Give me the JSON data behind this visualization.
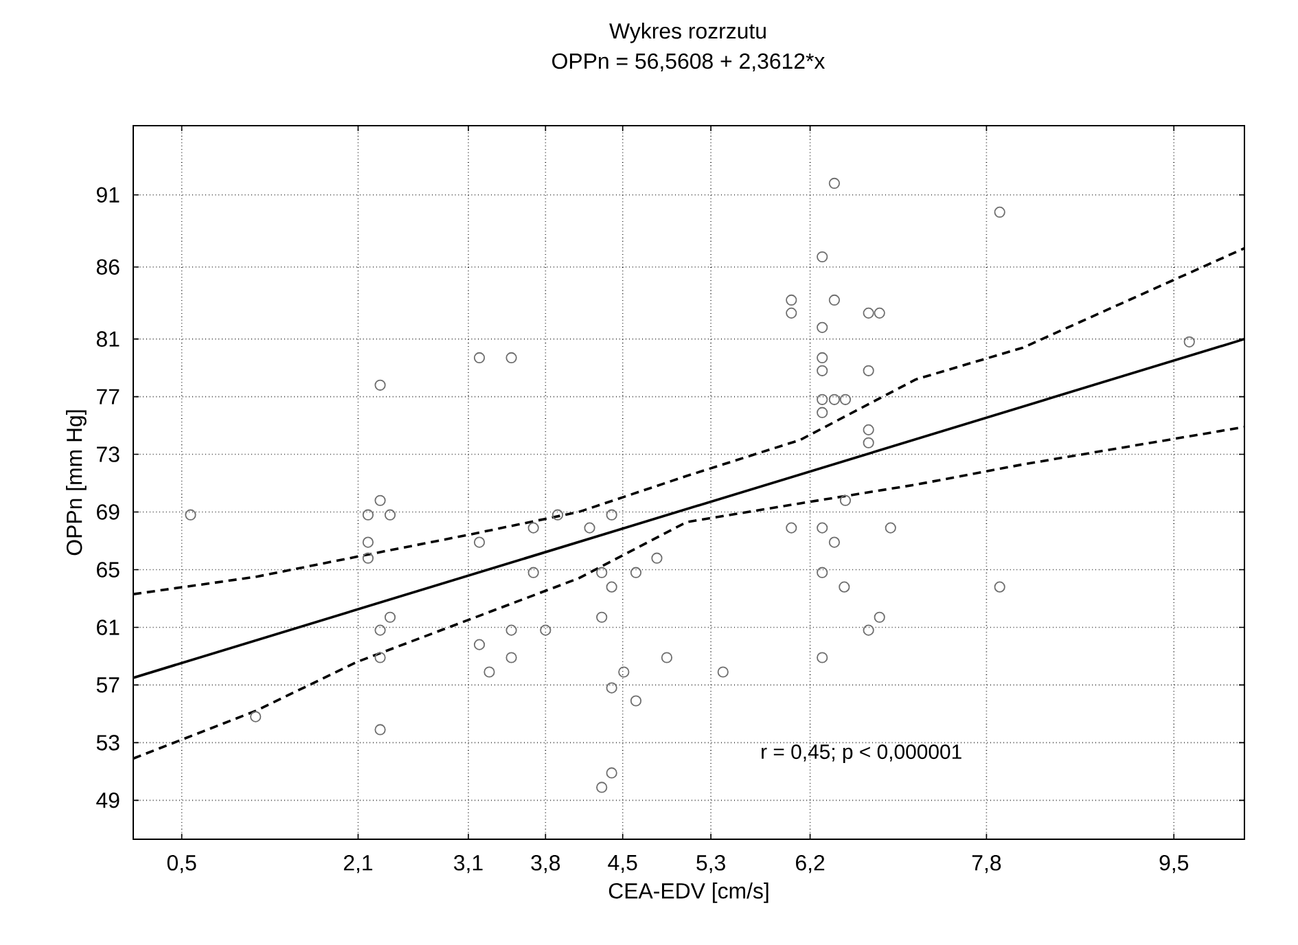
{
  "chart_data": {
    "type": "scatter",
    "title": "Wykres rozrzutu",
    "subtitle": "OPPn = 56,5608 + 2,3612*x",
    "xlabel": "CEA-EDV [cm/s]",
    "ylabel": "OPPn [mm Hg]",
    "xlim": [
      0.06,
      10.14
    ],
    "ylim": [
      46.3,
      95.8
    ],
    "xticks": [
      {
        "value": 0.5,
        "label": "0,5"
      },
      {
        "value": 2.1,
        "label": "2,1"
      },
      {
        "value": 3.1,
        "label": "3,1"
      },
      {
        "value": 3.8,
        "label": "3,8"
      },
      {
        "value": 4.5,
        "label": "4,5"
      },
      {
        "value": 5.3,
        "label": "5,3"
      },
      {
        "value": 6.2,
        "label": "6,2"
      },
      {
        "value": 7.8,
        "label": "7,8"
      },
      {
        "value": 9.5,
        "label": "9,5"
      }
    ],
    "yticks": [
      49,
      53,
      57,
      61,
      65,
      69,
      73,
      77,
      81,
      86,
      91
    ],
    "grid": true,
    "annotations": [
      "r = 0,45; p < 0,000001"
    ],
    "series": [
      {
        "marker": "circle",
        "color": "#6e6e6e",
        "x": [
          3.2,
          3.49,
          2.3,
          0.58,
          2.3,
          2.19,
          2.39,
          3.69,
          3.91,
          4.2,
          4.4,
          2.19,
          2.19,
          3.2,
          3.69,
          4.31,
          4.4,
          4.62,
          4.81,
          2.39,
          2.3,
          3.49,
          3.8,
          4.31,
          2.3,
          3.2,
          3.49,
          3.29,
          4.9,
          4.51,
          4.4,
          4.62,
          1.17,
          2.3,
          4.4,
          4.31,
          6.42,
          7.92,
          6.31,
          6.03,
          6.42,
          6.03,
          6.73,
          6.83,
          6.31,
          9.64,
          6.31,
          6.31,
          6.73,
          6.31,
          6.42,
          6.52,
          6.31,
          6.73,
          6.73,
          6.52,
          6.03,
          6.31,
          6.93,
          6.42,
          6.31,
          6.51,
          7.92,
          6.83,
          6.73,
          6.31,
          5.41
        ],
        "values": [
          79.7,
          79.7,
          77.8,
          68.8,
          69.8,
          68.8,
          68.8,
          67.9,
          68.8,
          67.9,
          68.8,
          66.9,
          65.8,
          66.9,
          64.8,
          64.8,
          63.8,
          64.8,
          65.8,
          61.7,
          60.8,
          60.8,
          60.8,
          61.7,
          58.9,
          59.8,
          58.9,
          57.9,
          58.9,
          57.9,
          56.8,
          55.9,
          54.8,
          53.9,
          50.9,
          49.9,
          91.8,
          89.8,
          86.7,
          83.7,
          83.7,
          82.8,
          82.8,
          82.8,
          81.8,
          80.8,
          79.7,
          78.8,
          78.8,
          76.8,
          76.8,
          76.8,
          75.9,
          74.7,
          73.8,
          69.8,
          67.9,
          67.9,
          67.9,
          66.9,
          64.8,
          63.8,
          63.8,
          61.7,
          60.8,
          58.9,
          57.9
        ]
      },
      {
        "type": "line",
        "line_style": "solid",
        "color": "#000000",
        "x": [
          0.06,
          10.14
        ],
        "values": [
          57.5,
          81.0
        ]
      },
      {
        "type": "line",
        "line_style": "dashed",
        "color": "#000000",
        "x": [
          0.06,
          1.17,
          2.09,
          3.09,
          4.1,
          5.08,
          6.11,
          7.16,
          8.13,
          10.14
        ],
        "values": [
          63.3,
          64.5,
          65.9,
          67.4,
          69.0,
          71.5,
          74.0,
          78.2,
          80.4,
          87.3
        ]
      },
      {
        "type": "line",
        "line_style": "dashed",
        "color": "#000000",
        "x": [
          0.06,
          1.17,
          2.09,
          4.1,
          5.08,
          6.11,
          7.16,
          8.13,
          10.14
        ],
        "values": [
          51.9,
          55.2,
          58.6,
          64.4,
          68.3,
          69.6,
          70.9,
          72.3,
          74.9
        ]
      }
    ]
  }
}
